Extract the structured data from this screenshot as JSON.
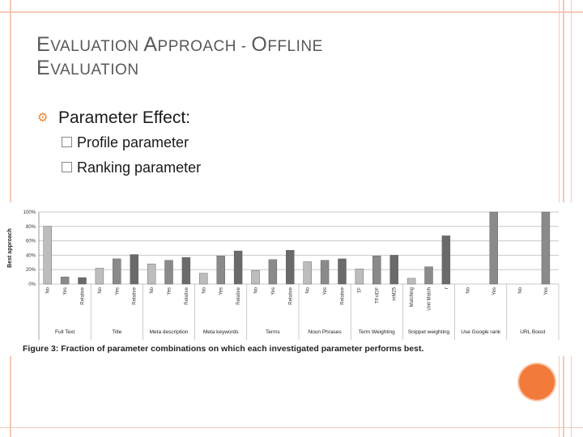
{
  "slide": {
    "title_line1_cap1": "E",
    "title_line1_rest1": "VALUATION ",
    "title_line1_cap2": "A",
    "title_line1_rest2": "PPROACH - ",
    "title_line1_cap3": "O",
    "title_line1_rest3": "FFLINE",
    "title_line2_cap": "E",
    "title_line2_rest": "VALUATION",
    "main_bullet": "Parameter Effect:",
    "sub_bullets": [
      "Profile parameter",
      "Ranking parameter"
    ],
    "bullet_icon": "gear-icon",
    "accent_color": "#f27a3a"
  },
  "chart_data": {
    "type": "bar",
    "ylabel": "Best approach",
    "ylim": [
      0,
      100
    ],
    "yticks": [
      "0%",
      "20%",
      "40%",
      "60%",
      "80%",
      "100%"
    ],
    "caption": "Figure 3: Fraction of parameter combinations on which each investigated parameter performs best.",
    "groups": [
      {
        "label": "Full Text",
        "bars": [
          {
            "label": "No",
            "value": 80
          },
          {
            "label": "Yes",
            "value": 10
          },
          {
            "label": "Relative",
            "value": 9
          }
        ]
      },
      {
        "label": "Title",
        "bars": [
          {
            "label": "No",
            "value": 22
          },
          {
            "label": "Yes",
            "value": 35
          },
          {
            "label": "Relative",
            "value": 41
          }
        ]
      },
      {
        "label": "Meta description",
        "bars": [
          {
            "label": "No",
            "value": 28
          },
          {
            "label": "Yes",
            "value": 33
          },
          {
            "label": "Relative",
            "value": 37
          }
        ]
      },
      {
        "label": "Meta keywords",
        "bars": [
          {
            "label": "No",
            "value": 15
          },
          {
            "label": "Yes",
            "value": 39
          },
          {
            "label": "Relative",
            "value": 46
          }
        ]
      },
      {
        "label": "Terms",
        "bars": [
          {
            "label": "No",
            "value": 19
          },
          {
            "label": "Yes",
            "value": 34
          },
          {
            "label": "Relative",
            "value": 47
          }
        ]
      },
      {
        "label": "Noun Phrases",
        "bars": [
          {
            "label": "No",
            "value": 31
          },
          {
            "label": "Yes",
            "value": 33
          },
          {
            "label": "Relative",
            "value": 35
          }
        ]
      },
      {
        "label": "Term Weighting",
        "bars": [
          {
            "label": "TF",
            "value": 21
          },
          {
            "label": "TFxIDF",
            "value": 39
          },
          {
            "label": "mM25",
            "value": 40
          }
        ]
      },
      {
        "label": "Snippet weighting",
        "bars": [
          {
            "label": "Matching",
            "value": 8
          },
          {
            "label": "Unit Match",
            "value": 24
          },
          {
            "label": "r",
            "value": 67
          }
        ]
      },
      {
        "label": "Use Google rank",
        "bars": [
          {
            "label": "No",
            "value": 0
          },
          {
            "label": "Yes",
            "value": 100
          }
        ]
      },
      {
        "label": "URL Boost",
        "bars": [
          {
            "label": "No",
            "value": 0
          },
          {
            "label": "Yes",
            "value": 100
          }
        ]
      }
    ]
  }
}
